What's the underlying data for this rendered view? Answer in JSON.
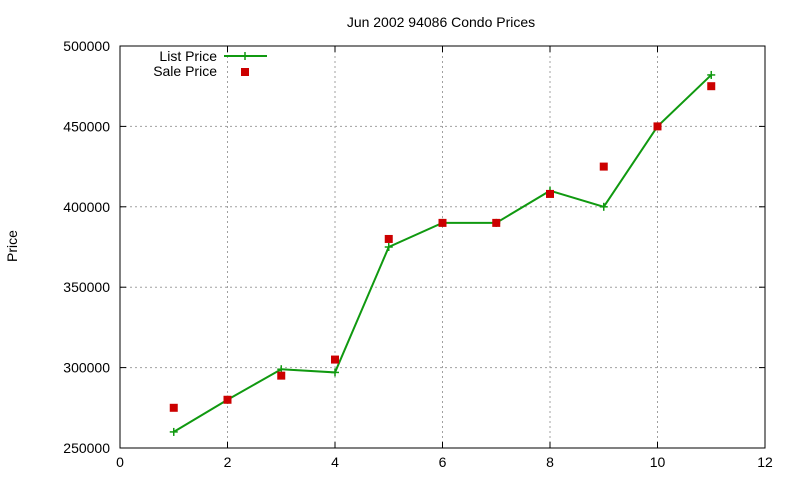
{
  "chart_data": {
    "type": "line",
    "title": "Jun 2002 94086 Condo Prices",
    "xlabel": "",
    "ylabel": "Price",
    "xlim": [
      0,
      12
    ],
    "ylim": [
      250000,
      500000
    ],
    "xticks": [
      0,
      2,
      4,
      6,
      8,
      10,
      12
    ],
    "yticks": [
      250000,
      300000,
      350000,
      400000,
      450000,
      500000
    ],
    "grid": true,
    "legend_position": "top-left",
    "series": [
      {
        "name": "List Price",
        "style": "line+cross",
        "color": "#109910",
        "x": [
          1,
          2,
          3,
          4,
          5,
          6,
          7,
          8,
          9,
          10,
          11
        ],
        "values": [
          260000,
          280000,
          299000,
          297000,
          375000,
          390000,
          390000,
          410000,
          400000,
          450000,
          482000
        ]
      },
      {
        "name": "Sale Price",
        "style": "square-markers",
        "color": "#cc0000",
        "x": [
          1,
          2,
          3,
          4,
          5,
          6,
          7,
          8,
          9,
          10,
          11
        ],
        "values": [
          275000,
          280000,
          295000,
          305000,
          380000,
          390000,
          390000,
          408000,
          425000,
          450000,
          475000
        ]
      }
    ]
  }
}
